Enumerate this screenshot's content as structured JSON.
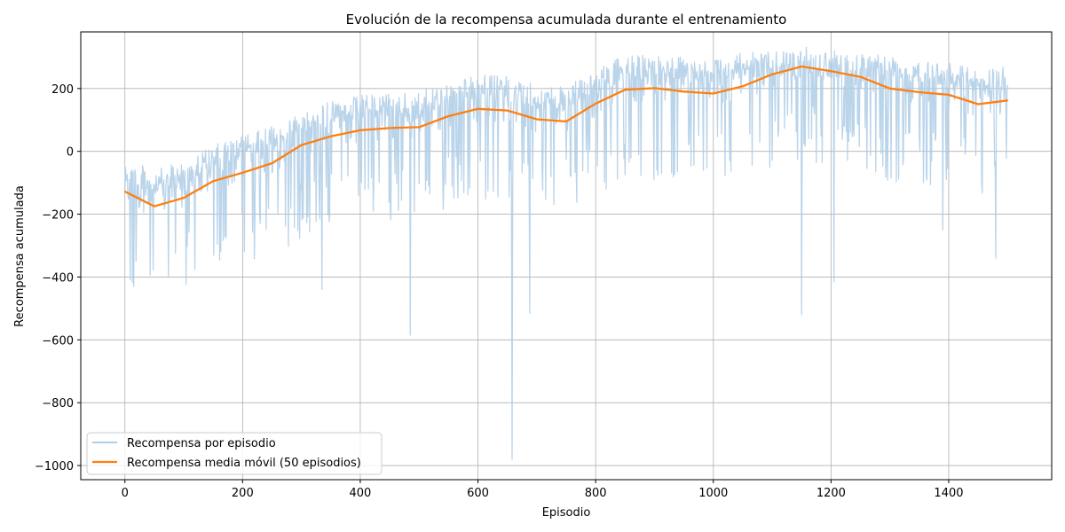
{
  "chart_data": {
    "type": "line",
    "title": "Evolución de la recompensa acumulada durante el entrenamiento",
    "xlabel": "Episodio",
    "ylabel": "Recompensa acumulada",
    "xlim": [
      -75,
      1575
    ],
    "ylim": [
      -1045,
      380
    ],
    "x_ticks": [
      0,
      200,
      400,
      600,
      800,
      1000,
      1200,
      1400
    ],
    "y_ticks": [
      -1000,
      -800,
      -600,
      -400,
      -200,
      0,
      200
    ],
    "grid": true,
    "legend_position": "lower-left",
    "series": [
      {
        "name": "Recompensa por episodio",
        "color": "#aecde6",
        "style": "noisy-line",
        "x_range": [
          0,
          1500
        ],
        "trend": [
          [
            0,
            -130
          ],
          [
            50,
            -170
          ],
          [
            100,
            -140
          ],
          [
            150,
            -90
          ],
          [
            200,
            -60
          ],
          [
            250,
            -30
          ],
          [
            300,
            20
          ],
          [
            350,
            50
          ],
          [
            400,
            70
          ],
          [
            450,
            75
          ],
          [
            500,
            80
          ],
          [
            550,
            110
          ],
          [
            600,
            135
          ],
          [
            650,
            130
          ],
          [
            700,
            100
          ],
          [
            750,
            95
          ],
          [
            800,
            150
          ],
          [
            850,
            195
          ],
          [
            900,
            200
          ],
          [
            950,
            190
          ],
          [
            1000,
            185
          ],
          [
            1050,
            205
          ],
          [
            1100,
            240
          ],
          [
            1150,
            270
          ],
          [
            1200,
            255
          ],
          [
            1250,
            235
          ],
          [
            1300,
            200
          ],
          [
            1350,
            185
          ],
          [
            1400,
            180
          ],
          [
            1450,
            150
          ],
          [
            1500,
            160
          ]
        ],
        "notable_minima": [
          [
            15,
            -430
          ],
          [
            335,
            -440
          ],
          [
            485,
            -585
          ],
          [
            658,
            -980
          ],
          [
            688,
            -515
          ],
          [
            1150,
            -520
          ],
          [
            1205,
            -415
          ],
          [
            1390,
            -250
          ],
          [
            1480,
            -340
          ]
        ]
      },
      {
        "name": "Recompensa media móvil (50 episodios)",
        "color": "#ff7f0e",
        "x": [
          0,
          50,
          100,
          150,
          200,
          250,
          300,
          350,
          400,
          450,
          500,
          550,
          600,
          650,
          700,
          750,
          800,
          850,
          900,
          950,
          1000,
          1050,
          1100,
          1150,
          1200,
          1250,
          1300,
          1350,
          1400,
          1450,
          1500
        ],
        "values": [
          -128,
          -175,
          -148,
          -95,
          -68,
          -38,
          20,
          48,
          67,
          74,
          77,
          112,
          135,
          130,
          102,
          95,
          152,
          196,
          201,
          190,
          184,
          207,
          245,
          270,
          255,
          237,
          200,
          188,
          180,
          150,
          162
        ]
      }
    ]
  }
}
